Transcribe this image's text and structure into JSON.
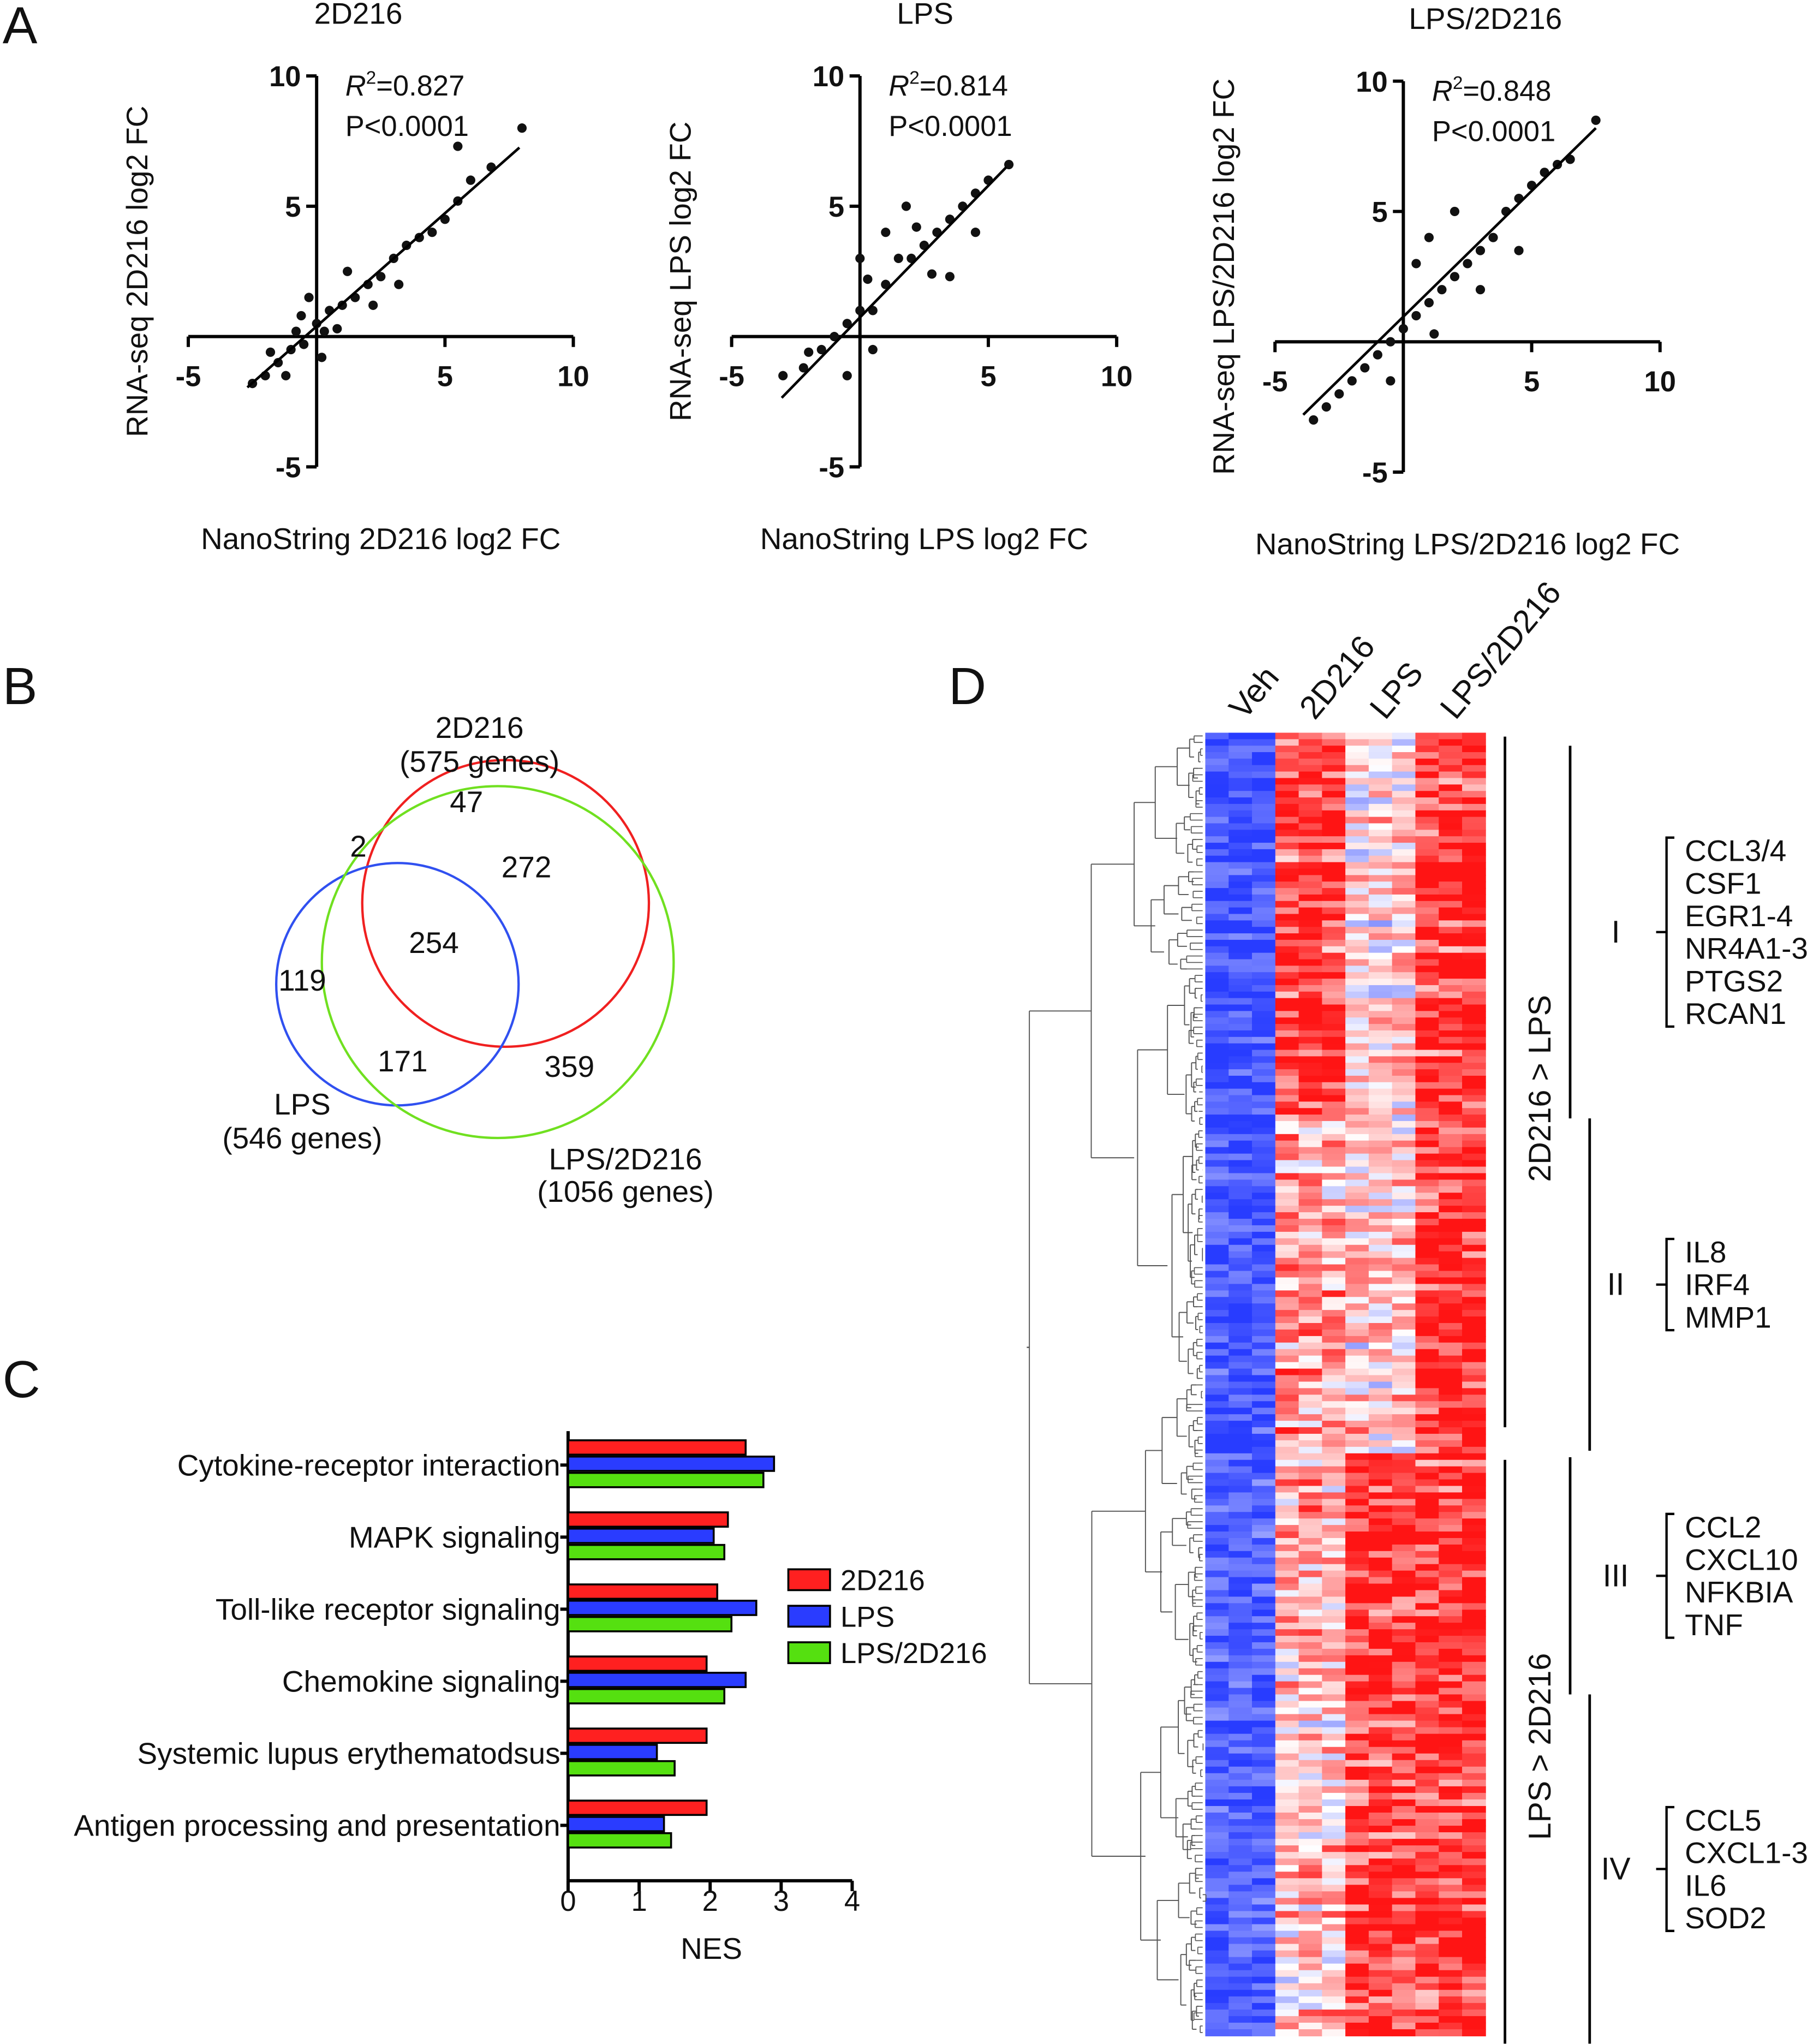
{
  "panels": {
    "A": "A",
    "B": "B",
    "C": "C",
    "D": "D"
  },
  "chart_data": [
    {
      "type": "scatter",
      "title": "2D216",
      "xlabel": "NanoString 2D216 log2 FC",
      "ylabel": "RNA-seq 2D216 log2 FC",
      "xlim": [
        -5,
        10
      ],
      "ylim": [
        -5,
        10
      ],
      "xticks": [
        "-5",
        "5",
        "10"
      ],
      "yticks": [
        "10",
        "5",
        "-5"
      ],
      "r2_label": "=0.827",
      "p_label": "P<0.0001",
      "fit": [
        [
          -2.7,
          -1.95
        ],
        [
          7.9,
          7.25
        ]
      ],
      "points": [
        [
          -2.5,
          -1.8
        ],
        [
          -2,
          -1.5
        ],
        [
          -1.5,
          -1
        ],
        [
          -1,
          -0.5
        ],
        [
          -0.8,
          0.2
        ],
        [
          -0.5,
          -0.3
        ],
        [
          0,
          0.5
        ],
        [
          0.3,
          0.2
        ],
        [
          0.5,
          1
        ],
        [
          -0.3,
          1.5
        ],
        [
          1,
          1.2
        ],
        [
          1.5,
          1.5
        ],
        [
          2,
          2
        ],
        [
          2.5,
          2.3
        ],
        [
          3,
          3
        ],
        [
          3.5,
          3.5
        ],
        [
          4,
          3.8
        ],
        [
          4.5,
          4
        ],
        [
          5,
          4.5
        ],
        [
          5.5,
          5.2
        ],
        [
          6,
          6
        ],
        [
          6.8,
          6.5
        ],
        [
          8,
          8
        ],
        [
          5.5,
          7.3
        ],
        [
          -1.2,
          -1.5
        ],
        [
          0.8,
          0.3
        ],
        [
          -0.6,
          0.8
        ],
        [
          1.2,
          2.5
        ],
        [
          2.2,
          1.2
        ],
        [
          -1.8,
          -0.6
        ],
        [
          0.2,
          -0.8
        ],
        [
          3.2,
          2
        ]
      ]
    },
    {
      "type": "scatter",
      "title": "LPS",
      "xlabel": "NanoString LPS log2 FC",
      "ylabel": "RNA-seq LPS log2 FC",
      "xlim": [
        -5,
        10
      ],
      "ylim": [
        -5,
        10
      ],
      "xticks": [
        "-5",
        "5",
        "10"
      ],
      "yticks": [
        "10",
        "5",
        "-5"
      ],
      "r2_label": "=0.814",
      "p_label": "P<0.0001",
      "fit": [
        [
          -3.05,
          -2.35
        ],
        [
          5.7,
          6.5
        ]
      ],
      "points": [
        [
          -3,
          -1.5
        ],
        [
          -2,
          -0.6
        ],
        [
          -1.5,
          -0.5
        ],
        [
          -1,
          0
        ],
        [
          -0.5,
          0.5
        ],
        [
          0,
          1
        ],
        [
          0.5,
          1
        ],
        [
          0,
          3
        ],
        [
          0.3,
          2.2
        ],
        [
          1,
          2
        ],
        [
          1.5,
          3
        ],
        [
          1,
          4
        ],
        [
          2,
          3
        ],
        [
          2.5,
          3.5
        ],
        [
          3,
          4
        ],
        [
          3.5,
          4.5
        ],
        [
          4,
          5
        ],
        [
          4.5,
          5.5
        ],
        [
          5,
          6
        ],
        [
          5.8,
          6.6
        ],
        [
          4.5,
          4
        ],
        [
          2.8,
          2.4
        ],
        [
          -0.5,
          -1.5
        ],
        [
          0.5,
          -0.5
        ],
        [
          1.8,
          5
        ],
        [
          3.5,
          2.3
        ],
        [
          -2.2,
          -1.2
        ],
        [
          2.2,
          4.2
        ]
      ]
    },
    {
      "type": "scatter",
      "title": "LPS/2D216",
      "xlabel": "NanoString LPS/2D216 log2 FC",
      "ylabel": "RNA-seq LPS/2D216 log2 FC",
      "xlim": [
        -5,
        10
      ],
      "ylim": [
        -5,
        10
      ],
      "xticks": [
        "-5",
        "5",
        "10"
      ],
      "yticks": [
        "10",
        "5",
        "-5"
      ],
      "r2_label": "=0.848",
      "p_label": "P<0.0001",
      "fit": [
        [
          -3.9,
          -2.8
        ],
        [
          7.5,
          8.2
        ]
      ],
      "points": [
        [
          -3.5,
          -3
        ],
        [
          -3,
          -2.5
        ],
        [
          -2.5,
          -2
        ],
        [
          -2,
          -1.5
        ],
        [
          -1.5,
          -1
        ],
        [
          -1,
          -0.5
        ],
        [
          -0.5,
          0
        ],
        [
          0,
          0.5
        ],
        [
          0.5,
          1
        ],
        [
          1,
          1.5
        ],
        [
          1.5,
          2
        ],
        [
          2,
          2.5
        ],
        [
          2.5,
          3
        ],
        [
          3,
          3.5
        ],
        [
          3.5,
          4
        ],
        [
          4,
          5
        ],
        [
          4.5,
          5.5
        ],
        [
          5,
          6
        ],
        [
          5.5,
          6.5
        ],
        [
          6,
          6.8
        ],
        [
          6.5,
          7
        ],
        [
          7.5,
          8.5
        ],
        [
          1,
          4
        ],
        [
          2,
          5
        ],
        [
          0.5,
          3
        ],
        [
          -0.5,
          -1.5
        ],
        [
          3,
          2
        ],
        [
          4.5,
          3.5
        ],
        [
          1.2,
          0.3
        ]
      ]
    },
    {
      "type": "bar",
      "orientation": "horizontal",
      "xlabel": "NES",
      "xlim": [
        0,
        4
      ],
      "xticks": [
        "0",
        "1",
        "2",
        "3",
        "4"
      ],
      "categories": [
        "Cytokine-receptor interaction",
        "MAPK signaling",
        "Toll-like receptor signaling",
        "Chemokine signaling",
        "Systemic lupus erythematodsus",
        "Antigen processing and presentation"
      ],
      "series": [
        {
          "name": "2D216",
          "color": "#ff2020",
          "values": [
            2.5,
            2.25,
            2.1,
            1.95,
            1.95,
            1.95
          ]
        },
        {
          "name": "LPS",
          "color": "#2a3cff",
          "values": [
            2.9,
            2.05,
            2.65,
            2.5,
            1.25,
            1.35
          ]
        },
        {
          "name": "LPS/2D216",
          "color": "#55e010",
          "values": [
            2.75,
            2.2,
            2.3,
            2.2,
            1.5,
            1.45
          ]
        }
      ],
      "legend": "right"
    }
  ],
  "venn": {
    "sets": [
      {
        "name": "2D216",
        "size": "(575 genes)",
        "color": "#f02020"
      },
      {
        "name": "LPS",
        "size": "(546 genes)",
        "color": "#3050f0"
      },
      {
        "name": "LPS/2D216",
        "size": "(1056 genes)",
        "color": "#70e020"
      }
    ],
    "counts": {
      "only_2d216": "47",
      "2d216_lps": "2",
      "2d216_combo": "272",
      "all": "254",
      "only_lps": "119",
      "lps_combo": "171",
      "only_combo": "359"
    }
  },
  "heatmap": {
    "columns": [
      "Veh",
      "2D216",
      "LPS",
      "LPS/2D216"
    ],
    "groups": [
      {
        "label": "2D216 > LPS"
      },
      {
        "label": "LPS > 2D216"
      }
    ],
    "clusters": [
      {
        "id": "I",
        "genes": [
          "CCL3/4",
          "CSF1",
          "EGR1-4",
          "NR4A1-3",
          "PTGS2",
          "RCAN1"
        ],
        "means": [
          -0.9,
          0.8,
          0.1,
          0.85
        ]
      },
      {
        "id": "II",
        "genes": [
          "IL8",
          "IRF4",
          "MMP1"
        ],
        "means": [
          -0.85,
          0.4,
          0.2,
          0.9
        ]
      },
      {
        "id": "III",
        "genes": [
          "CCL2",
          "CXCL10",
          "NFKBIA",
          "TNF"
        ],
        "means": [
          -0.8,
          0.3,
          0.85,
          0.85
        ]
      },
      {
        "id": "IV",
        "genes": [
          "CCL5",
          "CXCL1-3",
          "IL6",
          "SOD2"
        ],
        "means": [
          -0.8,
          0.2,
          0.8,
          0.85
        ]
      }
    ]
  }
}
